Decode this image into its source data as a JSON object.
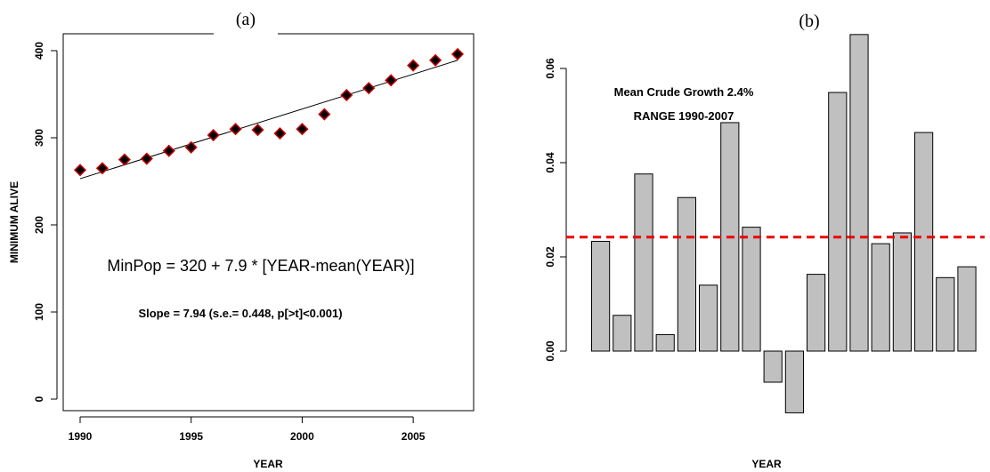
{
  "chart_data": [
    {
      "panel_label": "(a)",
      "type": "scatter",
      "xlabel": "YEAR",
      "ylabel": "MINIMUM ALIVE",
      "xlim": [
        1990,
        2007
      ],
      "ylim": [
        0,
        400
      ],
      "x_ticks": [
        1990,
        1995,
        2000,
        2005
      ],
      "y_ticks": [
        0,
        100,
        200,
        300,
        400
      ],
      "x": [
        1990,
        1991,
        1992,
        1993,
        1994,
        1995,
        1996,
        1997,
        1998,
        1999,
        2000,
        2001,
        2002,
        2003,
        2004,
        2005,
        2006,
        2007
      ],
      "y": [
        263,
        265,
        275,
        276,
        285,
        289,
        303,
        310,
        309,
        305,
        310,
        327,
        349,
        357,
        366,
        383,
        389,
        396
      ],
      "fit_line": {
        "x": [
          1990,
          2007
        ],
        "y": [
          253,
          389
        ]
      },
      "equation_text": "MinPop = 320 + 7.9 * [YEAR-mean(YEAR)]",
      "slope_text": "Slope = 7.94 (s.e.= 0.448, p[>t]<0.001)",
      "marker_fill": "#000000",
      "marker_edge": "#cc0000",
      "grid": false
    },
    {
      "panel_label": "(b)",
      "type": "bar",
      "xlabel": "YEAR",
      "ylabel": "",
      "ylim": [
        -0.013,
        0.067
      ],
      "y_ticks": [
        "0.00",
        "0.02",
        "0.04",
        "0.06"
      ],
      "values": [
        0.0233,
        0.0076,
        0.0376,
        0.0035,
        0.0326,
        0.014,
        0.0485,
        0.0263,
        -0.0066,
        -0.0131,
        0.0163,
        0.0549,
        0.0672,
        0.0228,
        0.0251,
        0.0464,
        0.0156,
        0.0179
      ],
      "mean_line": 0.0242,
      "annotation_line1": "Mean Crude Growth 2.4%",
      "annotation_line2": "RANGE 1990-2007",
      "bar_color": "#c0c0c0",
      "mean_line_color": "#ee0000",
      "grid": false
    }
  ]
}
